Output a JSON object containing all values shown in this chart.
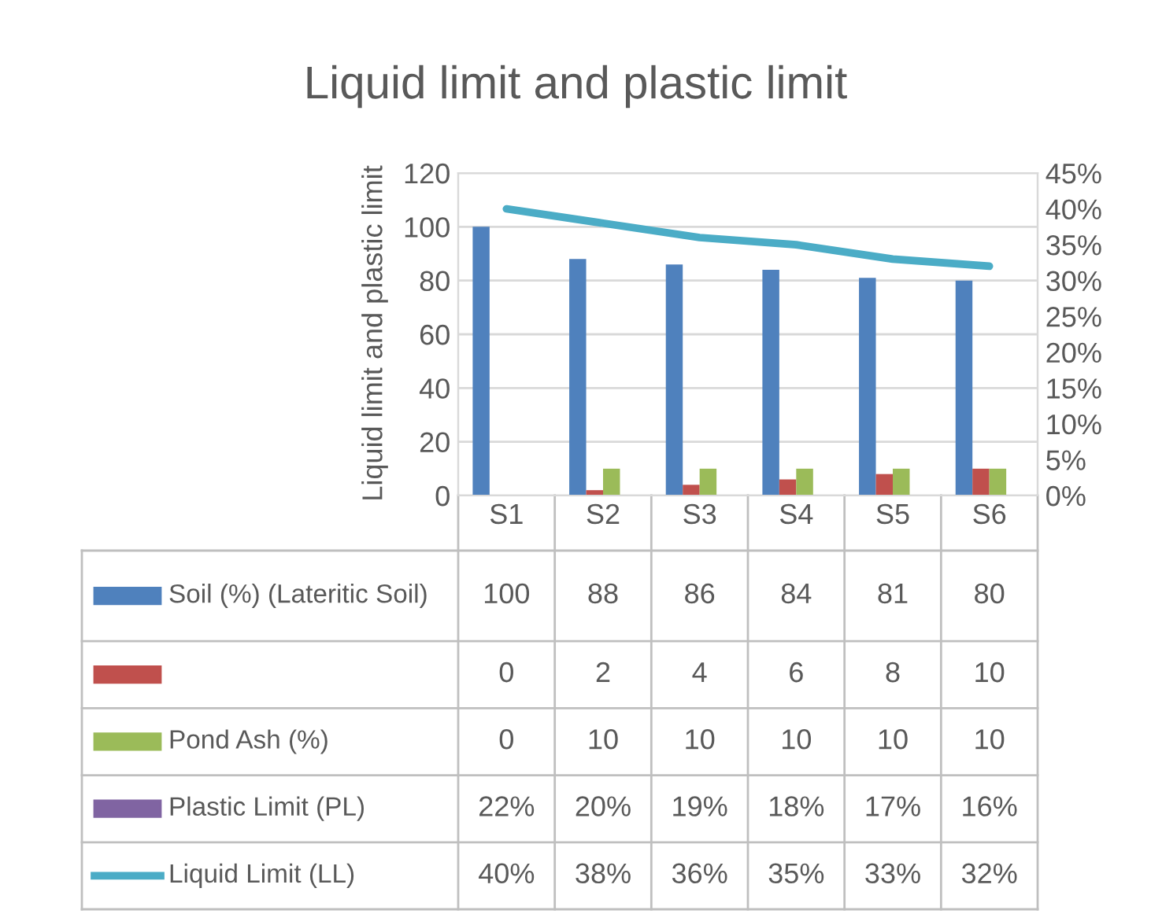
{
  "chart_data": {
    "type": "bar",
    "title": "Liquid limit and plastic limit",
    "ylabel": "Liquid limit and plastic limit",
    "categories": [
      "S1",
      "S2",
      "S3",
      "S4",
      "S5",
      "S6"
    ],
    "series": [
      {
        "name": "Soil (%) (Lateritic Soil)",
        "color": "#4f81bd",
        "values": [
          100,
          88,
          86,
          84,
          81,
          80
        ],
        "value_labels": [
          "100",
          "88",
          "86",
          "84",
          "81",
          "80"
        ]
      },
      {
        "name": null,
        "color": "#c0504d",
        "values": [
          0,
          2,
          4,
          6,
          8,
          10
        ],
        "value_labels": [
          "0",
          "2",
          "4",
          "6",
          "8",
          "10"
        ]
      },
      {
        "name": "Pond Ash (%)",
        "color": "#9bbb59",
        "values": [
          0,
          10,
          10,
          10,
          10,
          10
        ],
        "value_labels": [
          "0",
          "10",
          "10",
          "10",
          "10",
          "10"
        ]
      },
      {
        "name": "Plastic Limit (PL)",
        "color": "#8064a2",
        "values": [
          0.22,
          0.2,
          0.19,
          0.18,
          0.17,
          0.16
        ],
        "value_labels": [
          "22%",
          "20%",
          "19%",
          "18%",
          "17%",
          "16%"
        ]
      },
      {
        "name": "Liquid Limit (LL)",
        "type": "line",
        "axis": "y2",
        "color": "#4bacc6",
        "values": [
          40,
          38,
          36,
          35,
          33,
          32
        ],
        "value_labels": [
          "40%",
          "38%",
          "36%",
          "35%",
          "33%",
          "32%"
        ]
      }
    ],
    "ylim": [
      0,
      120
    ],
    "yticks": [
      0,
      20,
      40,
      60,
      80,
      100,
      120
    ],
    "y2lim": [
      0,
      45
    ],
    "y2ticks": [
      {
        "value": 0,
        "label": "0%"
      },
      {
        "value": 5,
        "label": "5%"
      },
      {
        "value": 10,
        "label": "10%"
      },
      {
        "value": 15,
        "label": "15%"
      },
      {
        "value": 20,
        "label": "20%"
      },
      {
        "value": 25,
        "label": "25%"
      },
      {
        "value": 30,
        "label": "30%"
      },
      {
        "value": 35,
        "label": "35%"
      },
      {
        "value": 40,
        "label": "40%"
      },
      {
        "value": 45,
        "label": "45%"
      }
    ],
    "grid": "y",
    "legend": "left",
    "marker": "none",
    "line_style": "solid"
  }
}
